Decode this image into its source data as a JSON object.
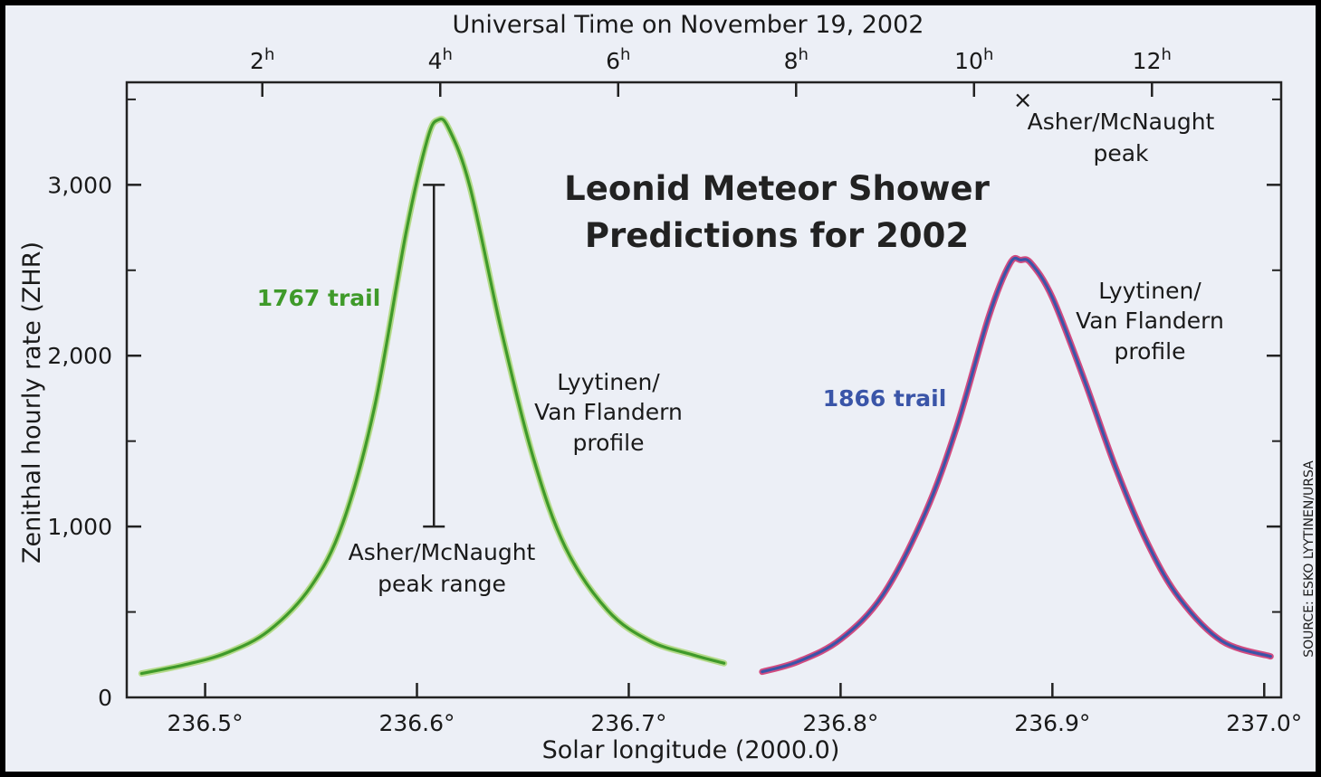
{
  "chart_data": {
    "type": "line",
    "title_lines": [
      "Leonid Meteor Shower",
      "Predictions for 2002"
    ],
    "xlabel": "Solar longitude (2000.0)",
    "ylabel": "Zenithal hourly rate (ZHR)",
    "top_axis_label": "Universal Time on November 19, 2002",
    "x_range": [
      236.463,
      237.008
    ],
    "y_range": [
      0,
      3600
    ],
    "x_ticks": [
      {
        "value": 236.5,
        "label": "236.5°"
      },
      {
        "value": 236.6,
        "label": "236.6°"
      },
      {
        "value": 236.7,
        "label": "236.7°"
      },
      {
        "value": 236.8,
        "label": "236.8°"
      },
      {
        "value": 236.9,
        "label": "236.9°"
      },
      {
        "value": 237.0,
        "label": "237.0°"
      }
    ],
    "y_ticks": [
      {
        "value": 0,
        "label": "0"
      },
      {
        "value": 1000,
        "label": "1,000"
      },
      {
        "value": 2000,
        "label": "2,000"
      },
      {
        "value": 3000,
        "label": "3,000"
      }
    ],
    "y_minor_ticks": [
      500,
      1500,
      2500,
      3500
    ],
    "top_ticks": [
      {
        "hour": 2,
        "text": "2",
        "sup": "h",
        "longitude": 236.527
      },
      {
        "hour": 4,
        "text": "4",
        "sup": "h",
        "longitude": 236.611
      },
      {
        "hour": 6,
        "text": "6",
        "sup": "h",
        "longitude": 236.695
      },
      {
        "hour": 8,
        "text": "8",
        "sup": "h",
        "longitude": 236.779
      },
      {
        "hour": 10,
        "text": "10",
        "sup": "h",
        "longitude": 236.863
      },
      {
        "hour": 12,
        "text": "12",
        "sup": "h",
        "longitude": 236.947
      }
    ],
    "series": [
      {
        "name": "1767 trail",
        "profile": "Lyytinen/Van Flandern profile",
        "color": "#3f9a2a",
        "color_light": "#b4da8a",
        "x": [
          236.47,
          236.49,
          236.51,
          236.53,
          236.55,
          236.565,
          236.58,
          236.595,
          236.605,
          236.61,
          236.615,
          236.625,
          236.64,
          236.655,
          236.67,
          236.69,
          236.71,
          236.73,
          236.745
        ],
        "y": [
          140,
          190,
          260,
          390,
          650,
          1020,
          1700,
          2730,
          3270,
          3380,
          3330,
          2990,
          2140,
          1400,
          880,
          510,
          330,
          250,
          200
        ]
      },
      {
        "name": "1866 trail",
        "profile": "Lyytinen/Van Flandern profile",
        "color": "#3a55a8",
        "color_light": "#d24b80",
        "x": [
          236.763,
          236.78,
          236.8,
          236.82,
          236.84,
          236.855,
          236.87,
          236.88,
          236.885,
          236.89,
          236.9,
          236.915,
          236.93,
          236.945,
          236.96,
          236.98,
          237.003
        ],
        "y": [
          150,
          210,
          340,
          600,
          1080,
          1590,
          2230,
          2540,
          2560,
          2540,
          2340,
          1860,
          1340,
          900,
          580,
          330,
          240
        ]
      }
    ],
    "annotations": [
      {
        "id": "peak-range",
        "type": "range",
        "x": 236.608,
        "y_low": 1000,
        "y_high": 3000,
        "lines": [
          "Asher/McNaught",
          "peak range"
        ]
      },
      {
        "id": "peak",
        "type": "point",
        "marker": "×",
        "x": 236.886,
        "y": 3500,
        "lines": [
          "Asher/McNaught",
          "peak"
        ]
      },
      {
        "id": "profile-1767",
        "lines": [
          "Lyytinen/",
          "Van Flandern",
          "profile"
        ]
      },
      {
        "id": "profile-1866",
        "lines": [
          "Lyytinen/",
          "Van Flandern",
          "profile"
        ]
      }
    ],
    "credit": "SOURCE: ESKO LYYTINEN/URSA",
    "grid": false,
    "legend": "none"
  }
}
